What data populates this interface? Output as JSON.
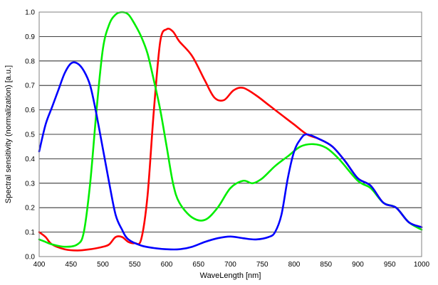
{
  "chart_data": {
    "type": "line",
    "xlabel": "WaveLength [nm]",
    "ylabel": "Spectral sensitivity (normalization) [a.u.]",
    "xlim": [
      400,
      1000
    ],
    "ylim": [
      0,
      1.0
    ],
    "x_ticks": [
      400,
      450,
      500,
      550,
      600,
      650,
      700,
      750,
      800,
      850,
      900,
      950,
      1000
    ],
    "y_ticks": [
      0.0,
      0.1,
      0.2,
      0.3,
      0.4,
      0.5,
      0.6,
      0.7,
      0.8,
      0.9,
      1.0
    ],
    "x_tick_labels": [
      "400",
      "450",
      "500",
      "550",
      "600",
      "650",
      "700",
      "750",
      "800",
      "850",
      "900",
      "950",
      "1000"
    ],
    "y_tick_labels": [
      "0.0",
      "0.1",
      "0.2",
      "0.3",
      "0.4",
      "0.5",
      "0.6",
      "0.7",
      "0.8",
      "0.9",
      "1.0"
    ],
    "grid": "horizontal",
    "legend": "none",
    "series": [
      {
        "color": "#ff0000",
        "points": [
          [
            400,
            0.1
          ],
          [
            410,
            0.08
          ],
          [
            420,
            0.05
          ],
          [
            440,
            0.03
          ],
          [
            460,
            0.025
          ],
          [
            480,
            0.03
          ],
          [
            500,
            0.04
          ],
          [
            510,
            0.05
          ],
          [
            520,
            0.08
          ],
          [
            530,
            0.08
          ],
          [
            540,
            0.06
          ],
          [
            550,
            0.055
          ],
          [
            560,
            0.07
          ],
          [
            570,
            0.25
          ],
          [
            580,
            0.6
          ],
          [
            590,
            0.88
          ],
          [
            600,
            0.93
          ],
          [
            610,
            0.92
          ],
          [
            620,
            0.88
          ],
          [
            640,
            0.82
          ],
          [
            660,
            0.72
          ],
          [
            675,
            0.65
          ],
          [
            690,
            0.64
          ],
          [
            705,
            0.68
          ],
          [
            720,
            0.69
          ],
          [
            740,
            0.66
          ],
          [
            760,
            0.62
          ],
          [
            780,
            0.58
          ],
          [
            800,
            0.54
          ],
          [
            820,
            0.5
          ],
          [
            840,
            0.48
          ],
          [
            860,
            0.45
          ],
          [
            880,
            0.39
          ],
          [
            900,
            0.32
          ],
          [
            920,
            0.29
          ],
          [
            940,
            0.22
          ],
          [
            960,
            0.2
          ],
          [
            980,
            0.14
          ],
          [
            1000,
            0.12
          ]
        ]
      },
      {
        "color": "#00ee00",
        "points": [
          [
            400,
            0.07
          ],
          [
            410,
            0.06
          ],
          [
            420,
            0.05
          ],
          [
            440,
            0.04
          ],
          [
            460,
            0.05
          ],
          [
            470,
            0.1
          ],
          [
            480,
            0.3
          ],
          [
            490,
            0.6
          ],
          [
            500,
            0.85
          ],
          [
            510,
            0.95
          ],
          [
            520,
            0.99
          ],
          [
            530,
            1.0
          ],
          [
            540,
            0.99
          ],
          [
            550,
            0.95
          ],
          [
            560,
            0.9
          ],
          [
            570,
            0.83
          ],
          [
            580,
            0.72
          ],
          [
            590,
            0.6
          ],
          [
            600,
            0.45
          ],
          [
            610,
            0.3
          ],
          [
            620,
            0.22
          ],
          [
            640,
            0.16
          ],
          [
            660,
            0.15
          ],
          [
            680,
            0.2
          ],
          [
            700,
            0.28
          ],
          [
            720,
            0.31
          ],
          [
            735,
            0.3
          ],
          [
            750,
            0.32
          ],
          [
            770,
            0.37
          ],
          [
            790,
            0.41
          ],
          [
            810,
            0.45
          ],
          [
            830,
            0.46
          ],
          [
            850,
            0.445
          ],
          [
            870,
            0.4
          ],
          [
            900,
            0.31
          ],
          [
            920,
            0.28
          ],
          [
            940,
            0.22
          ],
          [
            960,
            0.2
          ],
          [
            980,
            0.14
          ],
          [
            1000,
            0.11
          ]
        ]
      },
      {
        "color": "#0000ff",
        "points": [
          [
            400,
            0.43
          ],
          [
            410,
            0.54
          ],
          [
            420,
            0.61
          ],
          [
            430,
            0.68
          ],
          [
            440,
            0.75
          ],
          [
            450,
            0.79
          ],
          [
            460,
            0.79
          ],
          [
            470,
            0.76
          ],
          [
            480,
            0.7
          ],
          [
            490,
            0.58
          ],
          [
            500,
            0.44
          ],
          [
            510,
            0.3
          ],
          [
            520,
            0.17
          ],
          [
            530,
            0.11
          ],
          [
            540,
            0.07
          ],
          [
            560,
            0.045
          ],
          [
            580,
            0.035
          ],
          [
            600,
            0.03
          ],
          [
            620,
            0.03
          ],
          [
            640,
            0.04
          ],
          [
            660,
            0.06
          ],
          [
            680,
            0.075
          ],
          [
            700,
            0.082
          ],
          [
            720,
            0.075
          ],
          [
            740,
            0.07
          ],
          [
            760,
            0.08
          ],
          [
            770,
            0.1
          ],
          [
            780,
            0.17
          ],
          [
            790,
            0.32
          ],
          [
            800,
            0.43
          ],
          [
            810,
            0.48
          ],
          [
            820,
            0.5
          ],
          [
            840,
            0.48
          ],
          [
            860,
            0.45
          ],
          [
            880,
            0.39
          ],
          [
            900,
            0.32
          ],
          [
            920,
            0.29
          ],
          [
            940,
            0.22
          ],
          [
            960,
            0.2
          ],
          [
            980,
            0.14
          ],
          [
            1000,
            0.12
          ]
        ]
      }
    ]
  }
}
